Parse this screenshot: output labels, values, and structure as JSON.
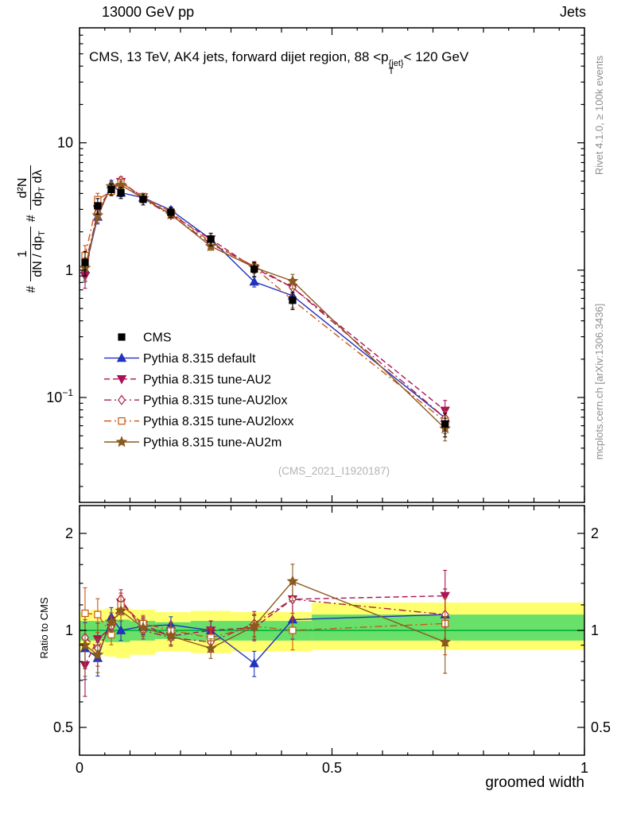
{
  "header": {
    "left": "13000 GeV pp",
    "right": "Jets"
  },
  "side_texts": {
    "top": "Rivet 4.1.0, ≥ 100k events",
    "bottom": "mcplots.cern.ch [arXiv:1306.3436]"
  },
  "watermark": "(CMS_2021_I1920187)",
  "chart_data": {
    "type": "line",
    "title_parts": {
      "pre": "CMS, 13 TeV, AK4 jets, forward dijet region, 88 <p",
      "sup": "{jet}",
      "sub": "T",
      "post": "< 120 GeV"
    },
    "ylabel_parts": {
      "hash1": "#",
      "f1_num": "1",
      "f1_den_a": "dN / dp",
      "f1_den_sub": "T",
      "hash2": "#",
      "f2_num": "d²N",
      "f2_den_a": "dp",
      "f2_den_sub": "T",
      "f2_den_b": " dλ"
    },
    "ratio_ylabel": "Ratio to CMS",
    "xlabel": "groomed width",
    "xlim": [
      0,
      1
    ],
    "ylim_main": [
      0.015,
      80
    ],
    "ylim_ratio": [
      0.41,
      2.44
    ],
    "x_major_ticks": [
      {
        "v": 0,
        "label": "0"
      },
      {
        "v": 0.5,
        "label": "0.5"
      },
      {
        "v": 1,
        "label": "1"
      }
    ],
    "y_main_ticks": [
      {
        "v": 10,
        "label": "10"
      },
      {
        "v": 1,
        "label": "1"
      },
      {
        "v": 0.1,
        "label": "10",
        "sup": "−1"
      }
    ],
    "y_ratio_ticks": [
      {
        "v": 2,
        "label": "2"
      },
      {
        "v": 1,
        "label": "1"
      },
      {
        "v": 0.5,
        "label": "0.5"
      }
    ],
    "x": [
      0.011,
      0.036,
      0.063,
      0.082,
      0.126,
      0.181,
      0.26,
      0.346,
      0.422,
      0.724
    ],
    "cms": {
      "name": "CMS",
      "color": "#000000",
      "marker": "square",
      "values": [
        1.15,
        3.2,
        4.3,
        4.05,
        3.6,
        2.85,
        1.75,
        1.02,
        0.58,
        0.062
      ],
      "err": [
        0.25,
        0.45,
        0.45,
        0.4,
        0.35,
        0.25,
        0.2,
        0.13,
        0.09,
        0.013
      ]
    },
    "series": [
      {
        "name": "Pythia 8.315 default",
        "color": "#2233bb",
        "line": "solid",
        "marker": "triangle-up",
        "filled": true,
        "values": [
          1.01,
          2.62,
          4.73,
          4.05,
          3.71,
          2.96,
          1.75,
          0.81,
          0.63,
          0.069
        ],
        "ratio": [
          0.88,
          0.82,
          1.1,
          1.0,
          1.03,
          1.04,
          1.0,
          0.79,
          1.08,
          1.12
        ]
      },
      {
        "name": "Pythia 8.315 tune-AU2",
        "color": "#aa1155",
        "line": "dashed",
        "marker": "triangle-down",
        "filled": true,
        "values": [
          0.9,
          3.01,
          4.39,
          4.94,
          3.74,
          2.74,
          1.75,
          1.04,
          0.73,
          0.079
        ],
        "ratio": [
          0.78,
          0.94,
          1.02,
          1.22,
          1.04,
          0.96,
          1.0,
          1.02,
          1.25,
          1.28
        ]
      },
      {
        "name": "Pythia 8.315 tune-AU2lox",
        "color": "#aa2244",
        "line": "dashdot",
        "marker": "diamond",
        "filled": false,
        "values": [
          1.09,
          2.82,
          4.43,
          5.06,
          3.6,
          2.71,
          1.61,
          1.07,
          0.73,
          0.069
        ],
        "ratio": [
          0.95,
          0.88,
          1.03,
          1.25,
          1.0,
          0.95,
          0.92,
          1.05,
          1.25,
          1.12
        ]
      },
      {
        "name": "Pythia 8.315 tune-AU2loxx",
        "color": "#cc5511",
        "line": "dashdot",
        "marker": "square",
        "filled": false,
        "values": [
          1.3,
          3.58,
          4.17,
          4.86,
          3.78,
          2.85,
          1.66,
          1.05,
          0.58,
          0.065
        ],
        "ratio": [
          1.13,
          1.12,
          0.97,
          1.2,
          1.05,
          1.0,
          0.95,
          1.03,
          1.0,
          1.05
        ]
      },
      {
        "name": "Pythia 8.315 tune-AU2m",
        "color": "#8a5a20",
        "line": "solid",
        "marker": "star",
        "filled": true,
        "values": [
          1.04,
          2.69,
          4.56,
          4.66,
          3.67,
          2.74,
          1.54,
          1.05,
          0.82,
          0.057
        ],
        "ratio": [
          0.9,
          0.84,
          1.06,
          1.15,
          1.02,
          0.96,
          0.88,
          1.03,
          1.42,
          0.92
        ]
      }
    ],
    "model_rel_err": [
      0.2,
      0.12,
      0.07,
      0.07,
      0.06,
      0.06,
      0.07,
      0.09,
      0.13,
      0.2
    ],
    "bands": {
      "edges": [
        0,
        0.022,
        0.05,
        0.072,
        0.1,
        0.15,
        0.22,
        0.3,
        0.385,
        0.46,
        1.0
      ],
      "yellow_lo": [
        0.86,
        0.84,
        0.83,
        0.82,
        0.84,
        0.86,
        0.85,
        0.86,
        0.86,
        0.87
      ],
      "yellow_hi": [
        1.14,
        1.16,
        1.17,
        1.18,
        1.16,
        1.14,
        1.15,
        1.14,
        1.14,
        1.22
      ],
      "green_lo": [
        0.93,
        0.93,
        0.92,
        0.92,
        0.93,
        0.94,
        0.93,
        0.93,
        0.93,
        0.93
      ],
      "green_hi": [
        1.07,
        1.07,
        1.08,
        1.08,
        1.07,
        1.06,
        1.07,
        1.07,
        1.07,
        1.12
      ],
      "yellow": "#ffff6e",
      "green": "#69e069",
      "line_color": "#00b33c"
    }
  }
}
